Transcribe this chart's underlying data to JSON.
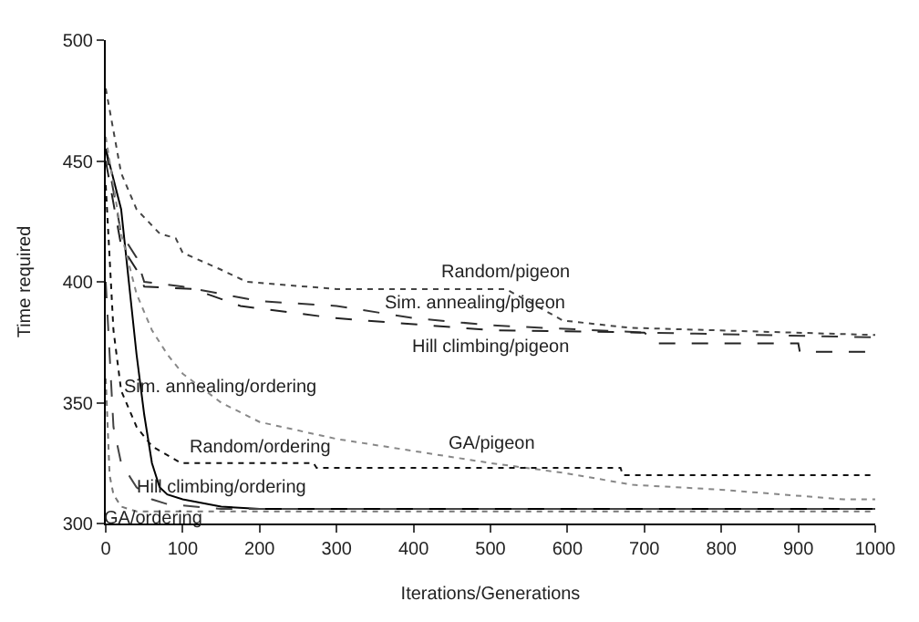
{
  "chart_data": {
    "type": "line",
    "xlabel": "Iterations/Generations",
    "ylabel": "Time required",
    "xlim": [
      0,
      1000
    ],
    "xticks": [
      0,
      100,
      200,
      300,
      400,
      500,
      600,
      700,
      800,
      900,
      1000
    ],
    "ylim": [
      300,
      500
    ],
    "yticks": [
      300,
      350,
      400,
      450,
      500
    ],
    "marker": "none",
    "series": [
      {
        "color": "#444444",
        "line_style": "dotted",
        "x": [
          0,
          20,
          40,
          70,
          91,
          100,
          150,
          183,
          300,
          520,
          560,
          594,
          680,
          1000
        ],
        "values": [
          480,
          445,
          430,
          420,
          418,
          412,
          405,
          400,
          397,
          397,
          390,
          384,
          381,
          378
        ]
      },
      {
        "color": "#333333",
        "line_style": "dashed",
        "x": [
          0,
          20,
          40,
          50,
          100,
          150,
          200,
          300,
          400,
          500,
          700,
          1000
        ],
        "values": [
          455,
          420,
          410,
          400,
          398,
          395,
          392,
          390,
          385,
          382,
          379,
          377
        ]
      },
      {
        "color": "#222222",
        "line_style": "dashed",
        "x": [
          0,
          20,
          40,
          50,
          114,
          175,
          297,
          500,
          700,
          715,
          900,
          902,
          1000
        ],
        "values": [
          450,
          415,
          405,
          398,
          397,
          390,
          385,
          380,
          379,
          374.5,
          374.5,
          371,
          371
        ]
      },
      {
        "color": "#000000",
        "line_style": "solid",
        "x": [
          0,
          20,
          30,
          40,
          50,
          60,
          70,
          80,
          100,
          150,
          200,
          1000
        ],
        "values": [
          455,
          430,
          400,
          370,
          345,
          325,
          315,
          312,
          310,
          307,
          306,
          306
        ]
      },
      {
        "color": "#888888",
        "line_style": "dotted",
        "x": [
          0,
          20,
          40,
          60,
          80,
          100,
          150,
          200,
          300,
          400,
          500,
          594,
          685,
          799,
          959,
          1000
        ],
        "values": [
          460,
          420,
          395,
          380,
          370,
          362,
          350,
          342,
          335,
          330,
          325,
          321,
          316,
          314,
          310,
          310
        ]
      },
      {
        "color": "#111111",
        "line_style": "dotted",
        "x": [
          0,
          10,
          20,
          40,
          60,
          98,
          200,
          270,
          274,
          669,
          672,
          1000
        ],
        "values": [
          440,
          380,
          355,
          340,
          332,
          325,
          325,
          325,
          323,
          323,
          320,
          320
        ]
      },
      {
        "color": "#444444",
        "line_style": "dashed",
        "x": [
          0,
          10,
          20,
          40,
          60,
          80,
          150,
          1000
        ],
        "values": [
          400,
          340,
          325,
          315,
          310,
          308,
          306,
          306
        ]
      },
      {
        "color": "#777777",
        "line_style": "dotted",
        "x": [
          0,
          5,
          10,
          20,
          40,
          1000
        ],
        "values": [
          360,
          320,
          312,
          307,
          305,
          305
        ]
      }
    ],
    "annotations": [
      {
        "text": "Random/pigeon",
        "x": 520,
        "y": 397
      },
      {
        "text": "Sim. annealing/pigeon",
        "x": 480,
        "y": 397
      },
      {
        "text": "Hill climbing/pigeon",
        "x": 500,
        "y": 380
      },
      {
        "text": "Sim. annealing/ordering",
        "x": 150,
        "y": 350
      },
      {
        "text": "GA/pigeon",
        "x": 500,
        "y": 325
      },
      {
        "text": "Random/ordering",
        "x": 200,
        "y": 325
      },
      {
        "text": "Hill climbing/ordering",
        "x": 150,
        "y": 307
      },
      {
        "text": "GA/ordering",
        "x": 62,
        "y": 305
      }
    ]
  }
}
